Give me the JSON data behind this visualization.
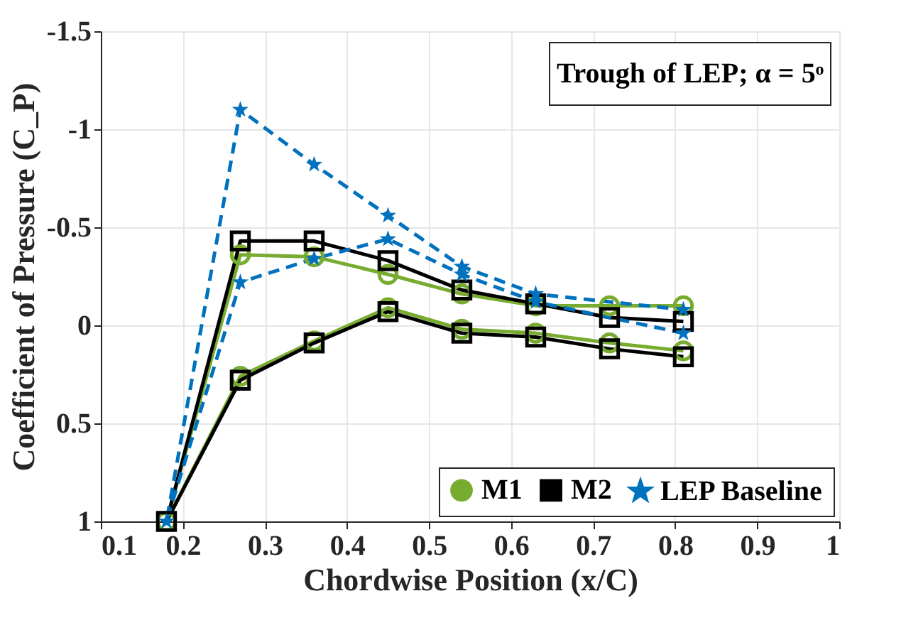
{
  "chart_data": {
    "type": "line",
    "xlabel": "Chordwise Position (x/C)",
    "ylabel": "Coefficient of Pressure (C_P)",
    "annotations": [
      "Trough of LEP;  α = 5ᵒ"
    ],
    "xlim": [
      0.1,
      1
    ],
    "xticks": [
      0.1,
      0.2,
      0.3,
      0.4,
      0.5,
      0.6,
      0.7,
      0.8,
      0.9,
      1
    ],
    "ylim": [
      1,
      -1.5
    ],
    "yticks": [
      1,
      0.5,
      0,
      -0.5,
      -1,
      -1.5
    ],
    "grid": true,
    "legend": "bottom right",
    "series": [
      {
        "name": "M1",
        "color": "#77ac30",
        "marker": "circle",
        "line_style": "solid",
        "x": [
          0.81,
          0.72,
          0.63,
          0.54,
          0.45,
          0.36,
          0.27,
          0.18,
          0.27,
          0.36,
          0.45,
          0.54,
          0.63,
          0.72,
          0.81
        ],
        "values": [
          0.13,
          0.09,
          0.04,
          0.02,
          -0.09,
          0.08,
          0.26,
          1.0,
          -0.36,
          -0.35,
          -0.26,
          -0.16,
          -0.1,
          -0.1,
          -0.1
        ]
      },
      {
        "name": "M2",
        "color": "#000000",
        "marker": "square",
        "line_style": "solid",
        "x": [
          0.81,
          0.72,
          0.63,
          0.54,
          0.45,
          0.36,
          0.27,
          0.18,
          0.27,
          0.36,
          0.45,
          0.54,
          0.63,
          0.72,
          0.81
        ],
        "values": [
          0.16,
          0.12,
          0.06,
          0.04,
          -0.07,
          0.09,
          0.28,
          1.0,
          -0.43,
          -0.43,
          -0.33,
          -0.18,
          -0.11,
          -0.04,
          -0.02
        ]
      },
      {
        "name": "LEP Baseline",
        "color": "#0072bd",
        "marker": "star",
        "line_style": "dashed",
        "x": [
          0.81,
          0.72,
          0.63,
          0.54,
          0.45,
          0.36,
          0.27,
          0.18,
          0.27,
          0.36,
          0.45,
          0.54,
          0.63,
          0.72,
          0.81
        ],
        "values": [
          0.04,
          null,
          -0.12,
          -0.26,
          -0.44,
          -0.34,
          -0.22,
          1.0,
          -1.1,
          -0.82,
          -0.56,
          -0.3,
          -0.16,
          null,
          -0.08
        ]
      }
    ]
  }
}
